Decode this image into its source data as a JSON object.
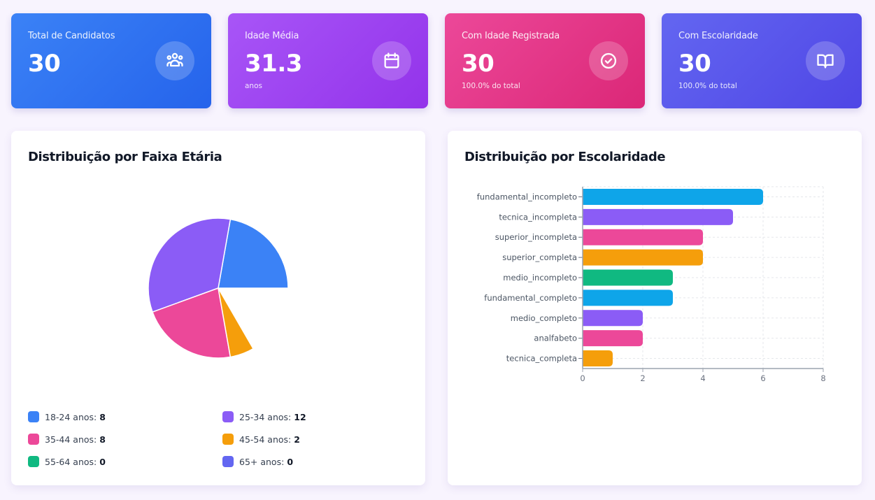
{
  "stats": [
    {
      "label": "Total de Candidatos",
      "value": "30",
      "sub": "",
      "icon": "users-icon"
    },
    {
      "label": "Idade Média",
      "value": "31.3",
      "sub": "anos",
      "icon": "calendar-icon"
    },
    {
      "label": "Com Idade Registrada",
      "value": "30",
      "sub": "100.0% do total",
      "icon": "check-circle-icon"
    },
    {
      "label": "Com Escolaridade",
      "value": "30",
      "sub": "100.0% do total",
      "icon": "book-open-icon"
    }
  ],
  "age_panel": {
    "title": "Distribuição por Faixa Etária",
    "legend": [
      {
        "label": "18-24 anos:",
        "value": "8",
        "color": "#3b82f6"
      },
      {
        "label": "25-34 anos:",
        "value": "12",
        "color": "#8b5cf6"
      },
      {
        "label": "35-44 anos:",
        "value": "8",
        "color": "#ec4899"
      },
      {
        "label": "45-54 anos:",
        "value": "2",
        "color": "#f59e0b"
      },
      {
        "label": "55-64 anos:",
        "value": "0",
        "color": "#10b981"
      },
      {
        "label": "65+ anos:",
        "value": "0",
        "color": "#6366f1"
      }
    ]
  },
  "school_panel": {
    "title": "Distribuição por Escolaridade"
  },
  "chart_data": [
    {
      "type": "pie",
      "title": "Distribuição por Faixa Etária",
      "categories": [
        "18-24 anos",
        "25-34 anos",
        "35-44 anos",
        "45-54 anos",
        "55-64 anos",
        "65+ anos"
      ],
      "values": [
        8,
        12,
        8,
        2,
        0,
        0
      ],
      "colors": [
        "#3b82f6",
        "#8b5cf6",
        "#ec4899",
        "#f59e0b",
        "#10b981",
        "#6366f1"
      ],
      "legend": "bottom"
    },
    {
      "type": "bar",
      "orientation": "horizontal",
      "title": "Distribuição por Escolaridade",
      "categories": [
        "fundamental_incompleto",
        "tecnica_incompleta",
        "superior_incompleta",
        "superior_completa",
        "medio_incompleto",
        "fundamental_completo",
        "medio_completo",
        "analfabeto",
        "tecnica_completa"
      ],
      "values": [
        6,
        5,
        4,
        4,
        3,
        3,
        2,
        2,
        1
      ],
      "colors": [
        "#0ea5e9",
        "#8b5cf6",
        "#ec4899",
        "#f59e0b",
        "#10b981",
        "#0ea5e9",
        "#8b5cf6",
        "#ec4899",
        "#f59e0b"
      ],
      "xlim": [
        0,
        8
      ],
      "xticks": [
        "0",
        "2",
        "4",
        "6",
        "8"
      ],
      "grid": true
    }
  ]
}
